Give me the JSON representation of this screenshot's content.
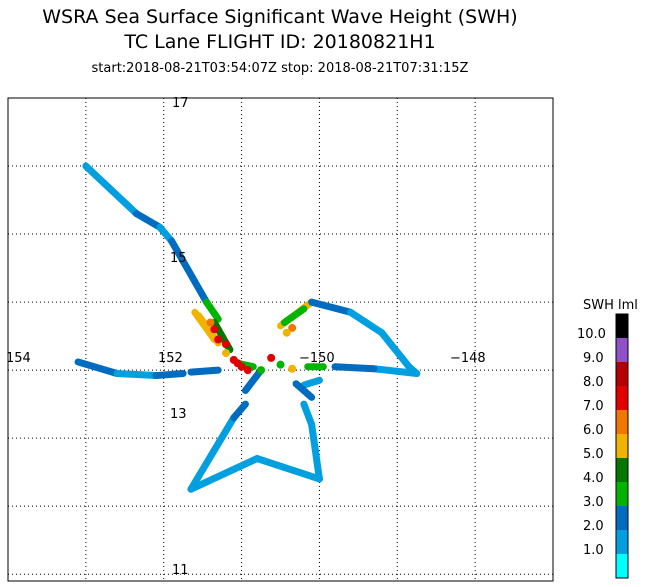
{
  "title": {
    "line1": "WSRA Sea Surface Significant Wave Height (SWH)",
    "line2": "TC Lane FLIGHT ID: 20180821H1",
    "line3": "start:2018-08-21T03:54:07Z stop: 2018-08-21T07:31:15Z"
  },
  "axes": {
    "lon_labels": [
      "154",
      "152",
      "−150",
      "−148"
    ],
    "lat_labels": [
      "17",
      "15",
      "13",
      "11"
    ]
  },
  "colorbar": {
    "title": "SWH lml",
    "labels": [
      "10.0",
      "9.0",
      "8.0",
      "7.0",
      "6.0",
      "5.0",
      "4.0",
      "3.0",
      "2.0",
      "1.0"
    ],
    "colors": [
      "#00ffff",
      "#00a0e0",
      "#006cc0",
      "#00b400",
      "#007800",
      "#f0b400",
      "#f07800",
      "#e00000",
      "#b40000",
      "#9050c8",
      "#000000"
    ]
  },
  "chart_data": {
    "type": "scatter",
    "x_axis": "longitude",
    "y_axis": "latitude",
    "xlim": [
      -154,
      -147
    ],
    "ylim": [
      10.9,
      18
    ],
    "ticks_lon": [
      -154,
      -152,
      -150,
      -148
    ],
    "ticks_lat": [
      11,
      13,
      15,
      17
    ],
    "grid": true,
    "segments": [
      {
        "pts": [
          [
            -153.0,
            17.0
          ],
          [
            -152.35,
            16.3
          ]
        ],
        "swh": 1.8
      },
      {
        "pts": [
          [
            -152.35,
            16.3
          ],
          [
            -152.05,
            16.1
          ]
        ],
        "swh": 2.6
      },
      {
        "pts": [
          [
            -152.05,
            16.1
          ],
          [
            -151.9,
            15.9
          ]
        ],
        "swh": 1.8
      },
      {
        "pts": [
          [
            -151.9,
            15.9
          ],
          [
            -151.6,
            15.3
          ]
        ],
        "swh": 2.7
      },
      {
        "pts": [
          [
            -151.6,
            15.3
          ],
          [
            -151.45,
            15.0
          ]
        ],
        "swh": 2.9
      },
      {
        "pts": [
          [
            -151.45,
            15.0
          ],
          [
            -151.3,
            14.75
          ]
        ],
        "swh": 3.7
      },
      {
        "pts": [
          [
            -151.55,
            14.8
          ],
          [
            -151.3,
            14.4
          ]
        ],
        "swh": 5.3
      },
      {
        "pts": [
          [
            -151.6,
            14.85
          ],
          [
            -151.35,
            14.45
          ]
        ],
        "swh": 5.7
      },
      {
        "pts": [
          [
            -151.35,
            14.7
          ],
          [
            -151.15,
            14.3
          ]
        ],
        "swh": 4.5
      },
      {
        "pts": [
          [
            -153.1,
            14.12
          ],
          [
            -152.6,
            13.95
          ]
        ],
        "swh": 2.6
      },
      {
        "pts": [
          [
            -152.6,
            13.95
          ],
          [
            -152.1,
            13.92
          ]
        ],
        "swh": 1.7
      },
      {
        "pts": [
          [
            -152.1,
            13.92
          ],
          [
            -151.75,
            13.95
          ]
        ],
        "swh": 2.6
      },
      {
        "pts": [
          [
            -151.65,
            13.97
          ],
          [
            -151.3,
            14.0
          ]
        ],
        "swh": 2.8
      },
      {
        "pts": [
          [
            -151.05,
            14.1
          ],
          [
            -150.85,
            14.05
          ]
        ],
        "swh": 3.0
      },
      {
        "pts": [
          [
            -150.5,
            14.65
          ],
          [
            -150.1,
            15.0
          ]
        ],
        "swh": 5.3
      },
      {
        "pts": [
          [
            -150.45,
            14.7
          ],
          [
            -150.2,
            14.9
          ]
        ],
        "swh": 3.0
      },
      {
        "pts": [
          [
            -150.1,
            15.0
          ],
          [
            -149.6,
            14.85
          ]
        ],
        "swh": 2.8
      },
      {
        "pts": [
          [
            -149.6,
            14.85
          ],
          [
            -149.2,
            14.55
          ]
        ],
        "swh": 1.8
      },
      {
        "pts": [
          [
            -149.2,
            14.55
          ],
          [
            -148.85,
            14.05
          ]
        ],
        "swh": 1.8
      },
      {
        "pts": [
          [
            -148.85,
            14.05
          ],
          [
            -148.75,
            13.95
          ]
        ],
        "swh": 1.2
      },
      {
        "pts": [
          [
            -148.75,
            13.95
          ],
          [
            -149.3,
            14.02
          ]
        ],
        "swh": 1.8
      },
      {
        "pts": [
          [
            -149.3,
            14.02
          ],
          [
            -149.8,
            14.05
          ]
        ],
        "swh": 2.9
      },
      {
        "pts": [
          [
            -150.15,
            14.05
          ],
          [
            -149.95,
            14.05
          ]
        ],
        "swh": 3.5
      },
      {
        "pts": [
          [
            -150.2,
            13.78
          ],
          [
            -150.0,
            13.85
          ]
        ],
        "swh": 1.8
      },
      {
        "pts": [
          [
            -150.3,
            13.8
          ],
          [
            -150.1,
            13.6
          ]
        ],
        "swh": 2.6
      },
      {
        "pts": [
          [
            -150.2,
            13.5
          ],
          [
            -150.1,
            13.2
          ]
        ],
        "swh": 1.8
      },
      {
        "pts": [
          [
            -150.1,
            13.2
          ],
          [
            -150.0,
            12.4
          ]
        ],
        "swh": 1.8
      },
      {
        "pts": [
          [
            -150.0,
            12.4
          ],
          [
            -150.8,
            12.7
          ]
        ],
        "swh": 1.3
      },
      {
        "pts": [
          [
            -150.8,
            12.7
          ],
          [
            -151.65,
            12.25
          ]
        ],
        "swh": 1.8
      },
      {
        "pts": [
          [
            -151.65,
            12.25
          ],
          [
            -151.1,
            13.3
          ]
        ],
        "swh": 1.8
      },
      {
        "pts": [
          [
            -151.1,
            13.3
          ],
          [
            -150.95,
            13.5
          ]
        ],
        "swh": 2.6
      },
      {
        "pts": [
          [
            -150.95,
            13.7
          ],
          [
            -150.75,
            14.0
          ]
        ],
        "swh": 2.9
      }
    ],
    "points": [
      {
        "lon": -151.3,
        "lat": 14.45,
        "swh": 7.5
      },
      {
        "lon": -151.2,
        "lat": 14.38,
        "swh": 7.5
      },
      {
        "lon": -151.35,
        "lat": 14.6,
        "swh": 7.3
      },
      {
        "lon": -151.4,
        "lat": 14.7,
        "swh": 6.3
      },
      {
        "lon": -151.2,
        "lat": 14.25,
        "swh": 5.5
      },
      {
        "lon": -151.1,
        "lat": 14.15,
        "swh": 7.5
      },
      {
        "lon": -151.05,
        "lat": 14.1,
        "swh": 7.5
      },
      {
        "lon": -151.0,
        "lat": 14.05,
        "swh": 7.2
      },
      {
        "lon": -150.92,
        "lat": 14.0,
        "swh": 7.5
      },
      {
        "lon": -150.62,
        "lat": 14.18,
        "swh": 7.5
      },
      {
        "lon": -150.75,
        "lat": 14.0,
        "swh": 3.6
      },
      {
        "lon": -150.5,
        "lat": 14.08,
        "swh": 3.0
      },
      {
        "lon": -150.35,
        "lat": 14.02,
        "swh": 5.4
      },
      {
        "lon": -150.35,
        "lat": 14.62,
        "swh": 6.1
      },
      {
        "lon": -150.42,
        "lat": 14.55,
        "swh": 5.2
      }
    ]
  }
}
